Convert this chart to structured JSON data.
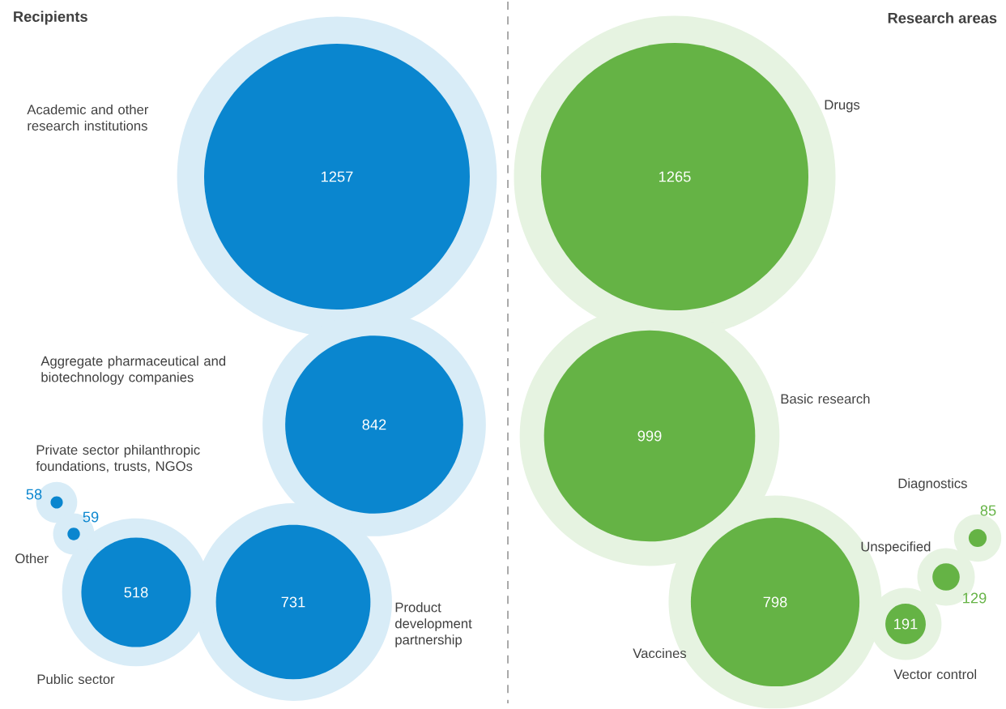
{
  "chart_data": [
    {
      "type": "other",
      "title": "Recipients",
      "categories": [
        "Academic and other research institutions",
        "Aggregate pharmaceutical and biotechnology companies",
        "Product development partnership",
        "Public sector",
        "Private sector philanthropic foundations, trusts, NGOs",
        "Other"
      ],
      "values": [
        1257,
        842,
        731,
        518,
        58,
        59
      ],
      "color": "#0a86cf",
      "data_labels": true
    },
    {
      "type": "other",
      "title": "Research areas",
      "categories": [
        "Drugs",
        "Basic research",
        "Vaccines",
        "Vector control",
        "Unspecified",
        "Diagnostics"
      ],
      "values": [
        1265,
        999,
        798,
        191,
        129,
        85
      ],
      "color": "#65b345",
      "data_labels": true
    }
  ]
}
